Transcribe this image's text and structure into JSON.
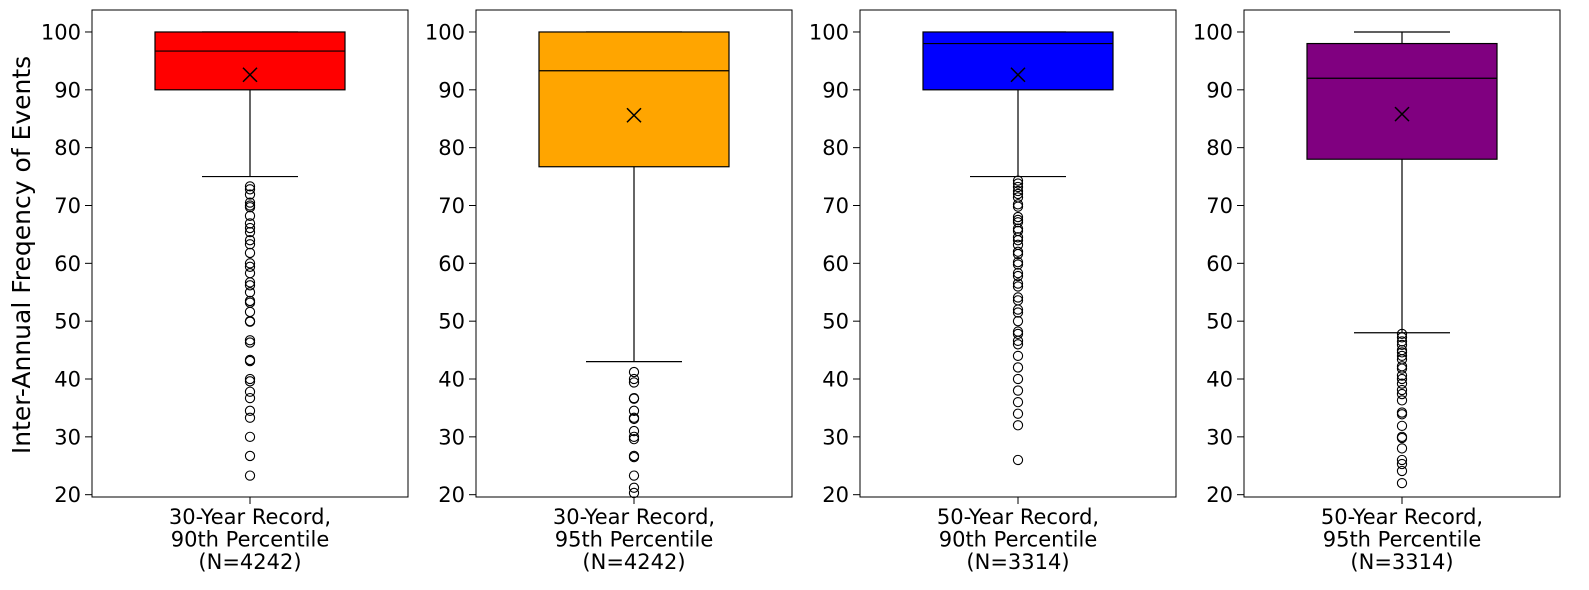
{
  "chart_data": {
    "type": "box",
    "ylabel": "Inter-Annual Freqency of Events",
    "ylim": [
      19.6,
      103.8
    ],
    "yticks": [
      20,
      30,
      40,
      50,
      60,
      70,
      80,
      90,
      100
    ],
    "grid": false,
    "panels": [
      {
        "label": [
          "30-Year Record,",
          "90th Percentile",
          "(N=4242)"
        ],
        "color": "#ff0000",
        "stats": {
          "whisker_low": 75,
          "q1": 90,
          "median": 96.7,
          "q3": 100,
          "whisker_high": 100,
          "mean": 92.6
        },
        "outliers": [
          73.3,
          72.8,
          71.9,
          70.5,
          70.0,
          69.7,
          68.2,
          66.9,
          66.1,
          65.4,
          64.0,
          63.3,
          61.8,
          60.0,
          59.4,
          58.3,
          56.7,
          56.2,
          55.0,
          53.5,
          53.2,
          51.6,
          50.0,
          49.9,
          46.7,
          46.3,
          43.3,
          43.1,
          40.0,
          39.6,
          37.8,
          36.7,
          34.5,
          33.3,
          30.0,
          26.7,
          23.3
        ]
      },
      {
        "label": [
          "30-Year Record,",
          "95th Percentile",
          "(N=4242)"
        ],
        "color": "#ffa500",
        "stats": {
          "whisker_low": 43,
          "q1": 76.7,
          "median": 93.3,
          "q3": 100,
          "whisker_high": 100,
          "mean": 85.6
        },
        "outliers": [
          41.2,
          40.0,
          39.4,
          36.7,
          36.6,
          34.5,
          33.3,
          33.1,
          31.0,
          30.0,
          29.6,
          26.7,
          26.5,
          23.3,
          21.2,
          20.3
        ]
      },
      {
        "label": [
          "50-Year Record,",
          "90th Percentile",
          "(N=3314)"
        ],
        "color": "#0000ff",
        "stats": {
          "whisker_low": 75,
          "q1": 90,
          "median": 98,
          "q3": 100,
          "whisker_high": 100,
          "mean": 92.6
        },
        "outliers": [
          74.3,
          73.8,
          73.2,
          72.5,
          72.0,
          71.4,
          70.2,
          69.8,
          68.0,
          67.5,
          67.1,
          66.0,
          65.6,
          64.5,
          64.0,
          63.2,
          62.0,
          61.6,
          60.2,
          59.8,
          58.3,
          57.8,
          56.5,
          56.0,
          54.1,
          53.6,
          52.0,
          51.5,
          50.0,
          48.2,
          47.8,
          46.6,
          46.0,
          44.0,
          42.0,
          40.0,
          38.0,
          36.0,
          34.0,
          32.0,
          26.0
        ]
      },
      {
        "label": [
          "50-Year Record,",
          "95th Percentile",
          "(N=3314)"
        ],
        "color": "#800080",
        "stats": {
          "whisker_low": 48,
          "q1": 78,
          "median": 92,
          "q3": 98,
          "whisker_high": 100,
          "mean": 85.8
        },
        "outliers": [
          47.8,
          47.2,
          46.5,
          45.9,
          45.0,
          44.6,
          44.0,
          43.4,
          42.2,
          41.8,
          40.6,
          40.0,
          39.2,
          38.1,
          37.4,
          36.3,
          34.2,
          33.9,
          31.9,
          30.0,
          29.8,
          28.0,
          26.0,
          25.3,
          24.1,
          22.0
        ]
      }
    ]
  }
}
